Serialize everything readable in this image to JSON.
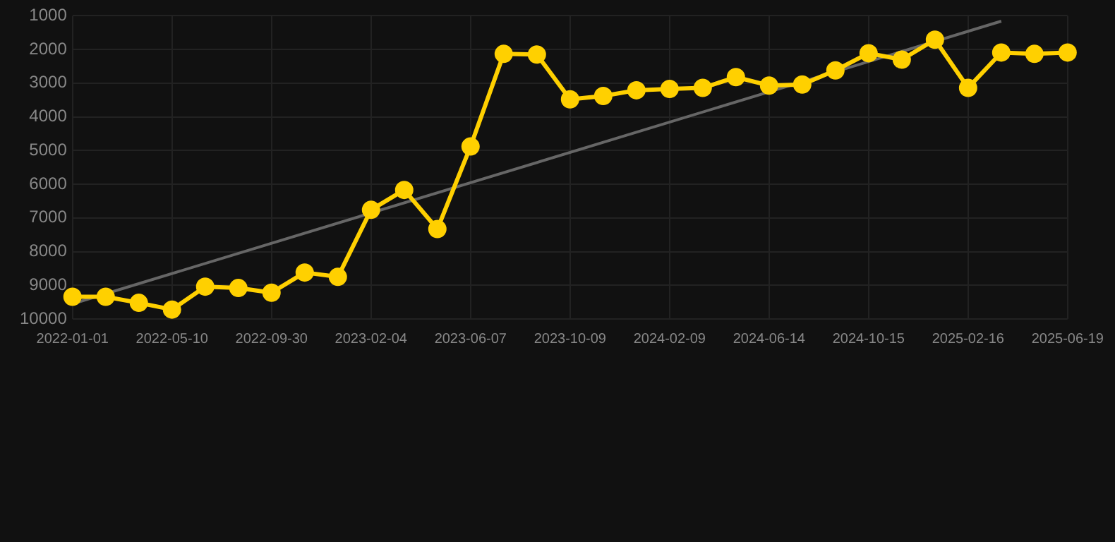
{
  "chart_data": {
    "type": "line",
    "categories": [
      "2022-01-01",
      null,
      null,
      "2022-05-10",
      null,
      null,
      "2022-09-30",
      null,
      null,
      "2023-02-04",
      null,
      null,
      "2023-06-07",
      null,
      null,
      "2023-10-09",
      null,
      null,
      "2024-02-09",
      null,
      null,
      "2024-06-14",
      null,
      null,
      "2024-10-15",
      null,
      null,
      "2025-02-16",
      null,
      null,
      "2025-06-19"
    ],
    "series": [
      {
        "type": "line",
        "color": "#ffd000",
        "marker": "circle",
        "values": [
          9340,
          9340,
          9520,
          9720,
          9040,
          9080,
          9220,
          8620,
          8750,
          6760,
          6170,
          7330,
          4880,
          2130,
          2150,
          3480,
          3380,
          3210,
          3170,
          3140,
          2820,
          3070,
          3040,
          2620,
          2110,
          2300,
          1710,
          3140,
          2090,
          2130,
          2090
        ]
      },
      {
        "type": "line",
        "color": "#666666",
        "marker": "none",
        "values": [
          9550,
          null,
          null,
          null,
          null,
          null,
          null,
          null,
          null,
          null,
          null,
          null,
          null,
          null,
          null,
          null,
          null,
          null,
          null,
          null,
          null,
          null,
          null,
          null,
          null,
          null,
          null,
          null,
          1160,
          null,
          null
        ]
      }
    ],
    "ylim": [
      10000,
      1000
    ],
    "yticks": [
      1000,
      2000,
      3000,
      4000,
      5000,
      6000,
      7000,
      8000,
      9000,
      10000
    ],
    "grid": true,
    "legend": false
  }
}
